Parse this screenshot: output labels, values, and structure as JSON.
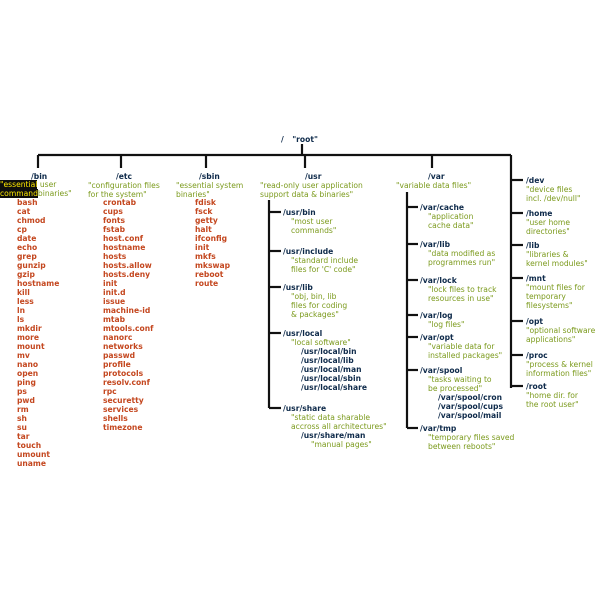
{
  "root": {
    "slash": "/",
    "label": "\"root\""
  },
  "bin": {
    "dir": "/bin",
    "desc_a": "\"essential",
    "desc_a_tail": " user",
    "desc_b": "command",
    "desc_b_tail": "binaries\"",
    "cmds": [
      "bash",
      "cat",
      "chmod",
      "cp",
      "date",
      "echo",
      "grep",
      "gunzip",
      "gzip",
      "hostname",
      "kill",
      "less",
      "ln",
      "ls",
      "mkdir",
      "more",
      "mount",
      "mv",
      "nano",
      "open",
      "ping",
      "ps",
      "pwd",
      "rm",
      "sh",
      "su",
      "tar",
      "touch",
      "umount",
      "uname"
    ]
  },
  "etc": {
    "dir": "/etc",
    "desc": [
      "\"configuration files",
      "for the system\""
    ],
    "files": [
      "crontab",
      "cups",
      "fonts",
      "fstab",
      "host.conf",
      "hostname",
      "hosts",
      "hosts.allow",
      "hosts.deny",
      "init",
      "init.d",
      "issue",
      "machine-id",
      "mtab",
      "mtools.conf",
      "nanorc",
      "networks",
      "passwd",
      "profile",
      "protocols",
      "resolv.conf",
      "rpc",
      "securetty",
      "services",
      "shells",
      "timezone"
    ]
  },
  "sbin": {
    "dir": "/sbin",
    "desc": [
      "\"essential system",
      "binaries\""
    ],
    "cmds": [
      "fdisk",
      "fsck",
      "getty",
      "halt",
      "ifconfig",
      "init",
      "mkfs",
      "mkswap",
      "reboot",
      "route"
    ]
  },
  "usr": {
    "dir": "/usr",
    "desc": [
      "\"read-only user application",
      "support data & binaries\""
    ],
    "children": [
      {
        "dir": "/usr/bin",
        "desc": [
          "\"most user",
          "commands\""
        ]
      },
      {
        "dir": "/usr/include",
        "desc": [
          "\"standard include",
          "files for 'C' code\""
        ]
      },
      {
        "dir": "/usr/lib",
        "desc": [
          "\"obj, bin, lib",
          "files for coding",
          "& packages\""
        ]
      },
      {
        "dir": "/usr/local",
        "desc": [
          "\"local software\""
        ],
        "subs": [
          "/usr/local/bin",
          "/usr/local/lib",
          "/usr/local/man",
          "/usr/local/sbin",
          "/usr/local/share"
        ]
      },
      {
        "dir": "/usr/share",
        "desc": [
          "\"static data sharable",
          "accross all architectures\""
        ],
        "sub": "/usr/share/man",
        "sub_desc": "\"manual pages\""
      }
    ]
  },
  "var": {
    "dir": "/var",
    "desc": [
      "\"variable data files\""
    ],
    "children": [
      {
        "dir": "/var/cache",
        "desc": [
          "\"application",
          "cache data\""
        ]
      },
      {
        "dir": "/var/lib",
        "desc": [
          "\"data modified as",
          "programmes run\""
        ]
      },
      {
        "dir": "/var/lock",
        "desc": [
          "\"lock files to track",
          "resources in use\""
        ]
      },
      {
        "dir": "/var/log",
        "desc": [
          "\"log files\""
        ]
      },
      {
        "dir": "/var/opt",
        "desc": [
          "\"variable data for",
          "installed packages\""
        ]
      },
      {
        "dir": "/var/spool",
        "desc": [
          "\"tasks waiting to",
          "be processed\""
        ],
        "subs": [
          "/var/spool/cron",
          "/var/spool/cups",
          "/var/spool/mail"
        ]
      },
      {
        "dir": "/var/tmp",
        "desc": [
          "\"temporary files saved",
          "between reboots\""
        ]
      }
    ]
  },
  "others": [
    {
      "dir": "/dev",
      "desc": [
        "\"device files",
        "incl. /dev/null\""
      ]
    },
    {
      "dir": "/home",
      "desc": [
        "\"user home",
        "directories\""
      ]
    },
    {
      "dir": "/lib",
      "desc": [
        "\"libraries &",
        "kernel modules\""
      ]
    },
    {
      "dir": "/mnt",
      "desc": [
        "\"mount files for",
        "temporary",
        "filesystems\""
      ]
    },
    {
      "dir": "/opt",
      "desc": [
        "\"optional software",
        "applications\""
      ]
    },
    {
      "dir": "/proc",
      "desc": [
        "\"process & kernel",
        "information files\""
      ]
    },
    {
      "dir": "/root",
      "desc": [
        "\"home dir. for",
        "the root user\""
      ]
    }
  ],
  "colors": {
    "dir": "#0e2a4a",
    "desc": "#7b9a1c",
    "file": "#c4471f",
    "line": "#111111",
    "highlight_bg": "#0d0d0d",
    "highlight_fg": "#ffe900"
  }
}
